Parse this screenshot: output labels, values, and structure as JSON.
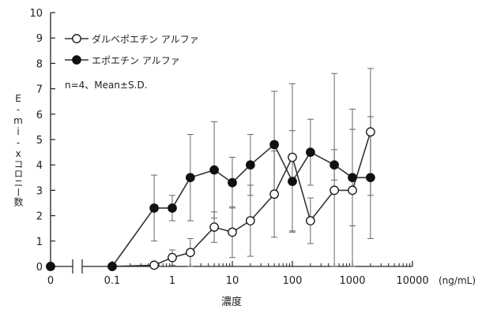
{
  "chart_data": {
    "type": "line",
    "xlabel": "濃度",
    "ylabel": "E-mi-xコロニー数",
    "x_unit": "(ng/mL)",
    "x_scale": "log with break (0 shown separately)",
    "x_ticks": [
      "0",
      "0.1",
      "1",
      "10",
      "100",
      "1000",
      "10000"
    ],
    "ylim": [
      0,
      10
    ],
    "y_ticks": [
      "0",
      "1",
      "2",
      "3",
      "4",
      "5",
      "6",
      "7",
      "8",
      "9",
      "10"
    ],
    "grid": false,
    "legend_position": "top-left",
    "annotation": "n=4、Mean±S.D.",
    "series": [
      {
        "name": "ダルベポエチン アルファ",
        "marker": "open-circle",
        "x": [
          0,
          0.1,
          0.5,
          1,
          2,
          5,
          10,
          20,
          50,
          100,
          200,
          500,
          1000,
          2000
        ],
        "y": [
          0,
          0,
          0.05,
          0.35,
          0.55,
          1.55,
          1.35,
          1.8,
          2.85,
          4.3,
          1.8,
          3.0,
          3.0,
          5.3
        ],
        "err": [
          0,
          0,
          0,
          0.3,
          0.55,
          0.6,
          1.0,
          1.4,
          1.7,
          2.9,
          0.9,
          4.6,
          3.2,
          2.5
        ]
      },
      {
        "name": "エポエチン アルファ",
        "marker": "filled-circle",
        "x": [
          0,
          0.1,
          0.5,
          1,
          2,
          5,
          10,
          20,
          50,
          100,
          200,
          500,
          1000,
          2000
        ],
        "y": [
          0,
          0,
          2.3,
          2.3,
          3.5,
          3.8,
          3.3,
          4.0,
          4.8,
          3.35,
          4.5,
          4.0,
          3.5,
          3.5
        ],
        "err": [
          0,
          0,
          1.3,
          0.5,
          1.7,
          1.9,
          1.0,
          1.2,
          2.1,
          2.0,
          1.3,
          0.6,
          1.9,
          2.4
        ]
      }
    ]
  }
}
